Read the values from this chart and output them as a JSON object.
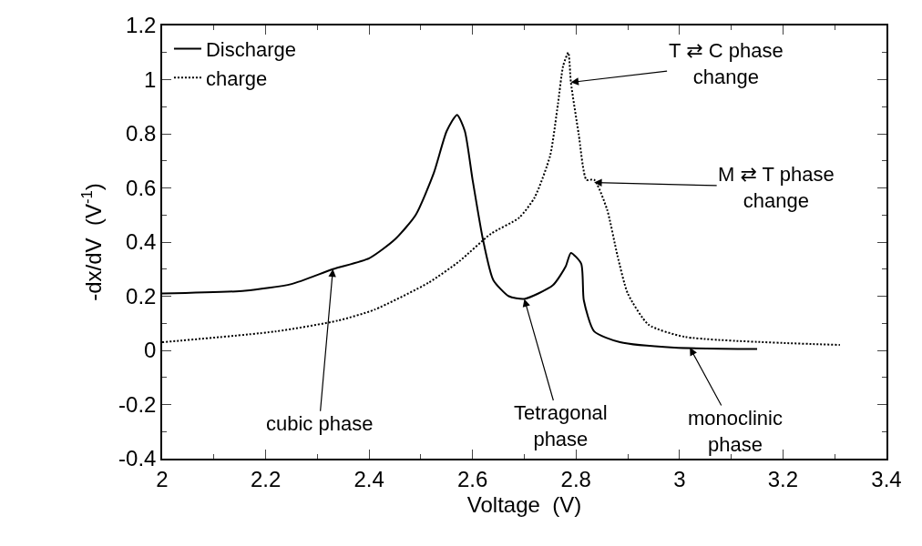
{
  "chart_data": {
    "type": "line",
    "xlabel": "Voltage  (V)",
    "ylabel": "-dx/dV  (V$^{-1}$)",
    "xlim": [
      2,
      3.4
    ],
    "xticks": [
      2,
      2.2,
      2.4,
      2.6,
      2.8,
      3,
      3.2,
      3.4
    ],
    "ylim": [
      -0.4,
      1.2
    ],
    "yticks": [
      -0.4,
      -0.2,
      0,
      0.2,
      0.4,
      0.6,
      0.8,
      1,
      1.2
    ],
    "grid": false,
    "legend": "top left",
    "marker": "none",
    "series": [
      {
        "name": "Discharge",
        "color": "#000000",
        "line_style": "solid",
        "x": [
          2.0,
          2.16,
          2.25,
          2.33,
          2.4,
          2.45,
          2.49,
          2.525,
          2.55,
          2.57,
          2.585,
          2.6,
          2.62,
          2.64,
          2.67,
          2.7,
          2.755,
          2.78,
          2.79,
          2.81,
          2.815,
          2.835,
          2.885,
          2.99,
          3.15
        ],
        "values": [
          0.21,
          0.22,
          0.245,
          0.3,
          0.34,
          0.41,
          0.5,
          0.655,
          0.81,
          0.87,
          0.81,
          0.63,
          0.41,
          0.26,
          0.2,
          0.19,
          0.24,
          0.31,
          0.36,
          0.32,
          0.185,
          0.07,
          0.03,
          0.01,
          0.005
        ]
      },
      {
        "name": "charge",
        "color": "#000000",
        "line_style": "dotted",
        "x": [
          2.0,
          2.22,
          2.34,
          2.41,
          2.515,
          2.575,
          2.635,
          2.69,
          2.72,
          2.75,
          2.765,
          2.775,
          2.785,
          2.79,
          2.805,
          2.82,
          2.835,
          2.86,
          2.88,
          2.9,
          2.94,
          3.01,
          3.31
        ],
        "values": [
          0.03,
          0.07,
          0.11,
          0.15,
          0.25,
          0.33,
          0.43,
          0.49,
          0.565,
          0.72,
          0.91,
          1.05,
          1.1,
          0.99,
          0.8,
          0.63,
          0.63,
          0.52,
          0.35,
          0.21,
          0.095,
          0.05,
          0.02
        ]
      }
    ],
    "annotations": [
      {
        "text": "T ⇄ C phase\nchange",
        "x": 2.79,
        "y": 0.99
      },
      {
        "text": "M ⇄ T phase\nchange",
        "x": 2.835,
        "y": 0.62
      },
      {
        "text": "cubic phase",
        "x": 2.33,
        "y": 0.3
      },
      {
        "text": "Tetragonal\nphase",
        "x": 2.7,
        "y": 0.19
      },
      {
        "text": "monoclinic\nphase",
        "x": 3.02,
        "y": 0.01
      }
    ]
  }
}
